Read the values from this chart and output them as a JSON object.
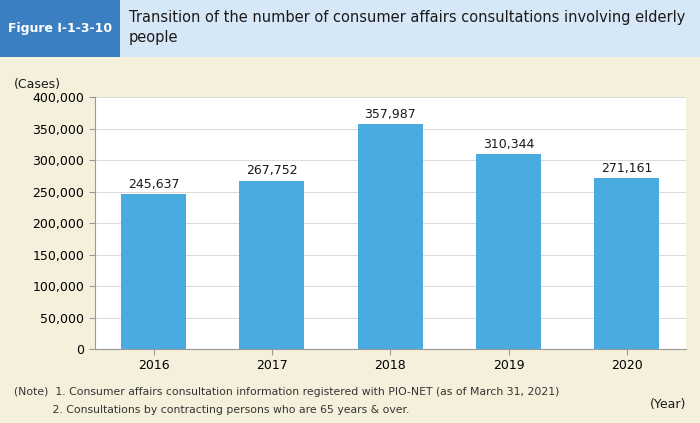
{
  "categories": [
    "2016",
    "2017",
    "2018",
    "2019",
    "2020"
  ],
  "values": [
    245637,
    267752,
    357987,
    310344,
    271161
  ],
  "bar_color": "#4AABE0",
  "bar_labels": [
    "245,637",
    "267,752",
    "357,987",
    "310,344",
    "271,161"
  ],
  "ylabel": "(Cases)",
  "xlabel_extra": "(Year)",
  "ylim": [
    0,
    400000
  ],
  "yticks": [
    0,
    50000,
    100000,
    150000,
    200000,
    250000,
    300000,
    350000,
    400000
  ],
  "ytick_labels": [
    "0",
    "50,000",
    "100,000",
    "150,000",
    "200,000",
    "250,000",
    "300,000",
    "350,000",
    "400,000"
  ],
  "title": "Transition of the number of consumer affairs consultations involving elderly\npeople",
  "figure_label": "Figure I-1-3-10",
  "header_bg_color": "#3A7FC1",
  "header_light_color": "#D6E8F7",
  "header_text_color": "#FFFFFF",
  "outer_bg_color": "#F5F0DC",
  "plot_bg_color": "#FFFFFF",
  "note_line1": "(Note)  1. Consumer affairs consultation information registered with PIO-NET (as of March 31, 2021)",
  "note_line2": "           2. Consultations by contracting persons who are 65 years & over.",
  "title_fontsize": 10.5,
  "label_fontsize": 9,
  "tick_fontsize": 9,
  "bar_label_fontsize": 9,
  "figure_label_fontsize": 9
}
